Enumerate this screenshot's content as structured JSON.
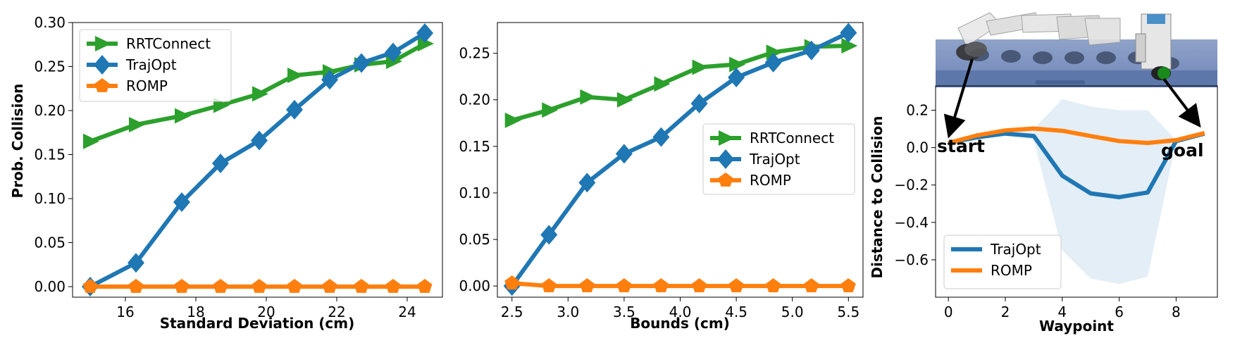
{
  "colors": {
    "RRTConnect": "#2ca02c",
    "TrajOpt": "#1f77b4",
    "ROMP": "#ff7f0e",
    "band": "#1f77b4"
  },
  "chart_data": [
    {
      "type": "line",
      "xlabel": "Standard Deviation (cm)",
      "ylabel": "Prob. Collision",
      "xlim": [
        14.5,
        25.0
      ],
      "ylim": [
        -0.012,
        0.3
      ],
      "xticks": [
        16,
        18,
        20,
        22,
        24
      ],
      "yticks": [
        0.0,
        0.05,
        0.1,
        0.15,
        0.2,
        0.25,
        0.3
      ],
      "ytick_labels": [
        "0.00",
        "0.05",
        "0.10",
        "0.15",
        "0.20",
        "0.25",
        "0.30"
      ],
      "xtick_labels": [
        "16",
        "18",
        "20",
        "22",
        "24"
      ],
      "legend_position": "top-left",
      "x": [
        15.0,
        16.3,
        17.6,
        18.7,
        19.8,
        20.8,
        21.8,
        22.7,
        23.6,
        24.5
      ],
      "series": [
        {
          "name": "RRTConnect",
          "marker": "triangle-right",
          "values": [
            0.165,
            0.184,
            0.194,
            0.206,
            0.219,
            0.24,
            0.244,
            0.252,
            0.256,
            0.276
          ]
        },
        {
          "name": "TrajOpt",
          "marker": "diamond",
          "values": [
            0.0,
            0.027,
            0.096,
            0.14,
            0.166,
            0.201,
            0.235,
            0.254,
            0.266,
            0.288
          ]
        },
        {
          "name": "ROMP",
          "marker": "pentagon",
          "values": [
            0.0,
            0.0,
            0.0,
            0.0,
            0.0,
            0.0,
            0.0,
            0.0,
            0.0,
            0.0
          ]
        }
      ]
    },
    {
      "type": "line",
      "xlabel": "Bounds (cm)",
      "ylabel": "",
      "xlim": [
        2.37,
        5.63
      ],
      "ylim": [
        -0.012,
        0.283
      ],
      "xticks": [
        2.5,
        3.0,
        3.5,
        4.0,
        4.5,
        5.0,
        5.5
      ],
      "xtick_labels": [
        "2.5",
        "3.0",
        "3.5",
        "4.0",
        "4.5",
        "5.0",
        "5.5"
      ],
      "yticks": [
        0.0,
        0.05,
        0.1,
        0.15,
        0.2,
        0.25
      ],
      "ytick_labels": [
        "0.00",
        "0.05",
        "0.10",
        "0.15",
        "0.20",
        "0.25"
      ],
      "legend_position": "center-right",
      "x": [
        2.5,
        2.83,
        3.17,
        3.5,
        3.83,
        4.17,
        4.5,
        4.83,
        5.17,
        5.5
      ],
      "series": [
        {
          "name": "RRTConnect",
          "marker": "triangle-right",
          "values": [
            0.178,
            0.189,
            0.203,
            0.2,
            0.217,
            0.235,
            0.238,
            0.251,
            0.257,
            0.258
          ]
        },
        {
          "name": "TrajOpt",
          "marker": "diamond",
          "values": [
            0.0,
            0.055,
            0.111,
            0.142,
            0.16,
            0.196,
            0.224,
            0.24,
            0.253,
            0.272
          ]
        },
        {
          "name": "ROMP",
          "marker": "pentagon",
          "values": [
            0.003,
            0.0,
            0.0,
            0.0,
            0.0,
            0.0,
            0.0,
            0.0,
            0.0,
            0.0
          ]
        }
      ]
    },
    {
      "type": "line",
      "xlabel": "Waypoint",
      "ylabel": "Distance to Collision",
      "xlim": [
        -0.45,
        9.45
      ],
      "ylim": [
        -0.8,
        0.33
      ],
      "xticks": [
        0,
        2,
        4,
        6,
        8
      ],
      "xtick_labels": [
        "0",
        "2",
        "4",
        "6",
        "8"
      ],
      "yticks": [
        -0.6,
        -0.4,
        -0.2,
        0.0,
        0.2
      ],
      "ytick_labels": [
        "−0.6",
        "−0.4",
        "−0.2",
        "0.0",
        "0.2"
      ],
      "legend_position": "lower-left",
      "x": [
        0,
        1,
        2,
        3,
        4,
        5,
        6,
        7,
        8,
        9
      ],
      "series": [
        {
          "name": "TrajOpt",
          "values": [
            0.025,
            0.055,
            0.075,
            0.062,
            -0.15,
            -0.245,
            -0.265,
            -0.24,
            0.035,
            0.075
          ]
        },
        {
          "name": "ROMP",
          "values": [
            0.025,
            0.065,
            0.092,
            0.102,
            0.09,
            0.062,
            0.035,
            0.025,
            0.04,
            0.078
          ]
        }
      ],
      "band": {
        "series": "TrajOpt",
        "x": [
          0,
          1,
          2,
          3,
          4,
          5,
          6,
          7,
          8,
          9
        ],
        "upper": [
          0.025,
          0.055,
          0.075,
          0.1,
          0.26,
          0.22,
          0.2,
          0.2,
          0.04,
          0.075
        ],
        "lower": [
          0.025,
          0.055,
          0.075,
          0.04,
          -0.55,
          -0.7,
          -0.73,
          -0.69,
          0.03,
          0.075
        ]
      },
      "annotations": {
        "start": "start",
        "goal": "goal"
      }
    }
  ]
}
